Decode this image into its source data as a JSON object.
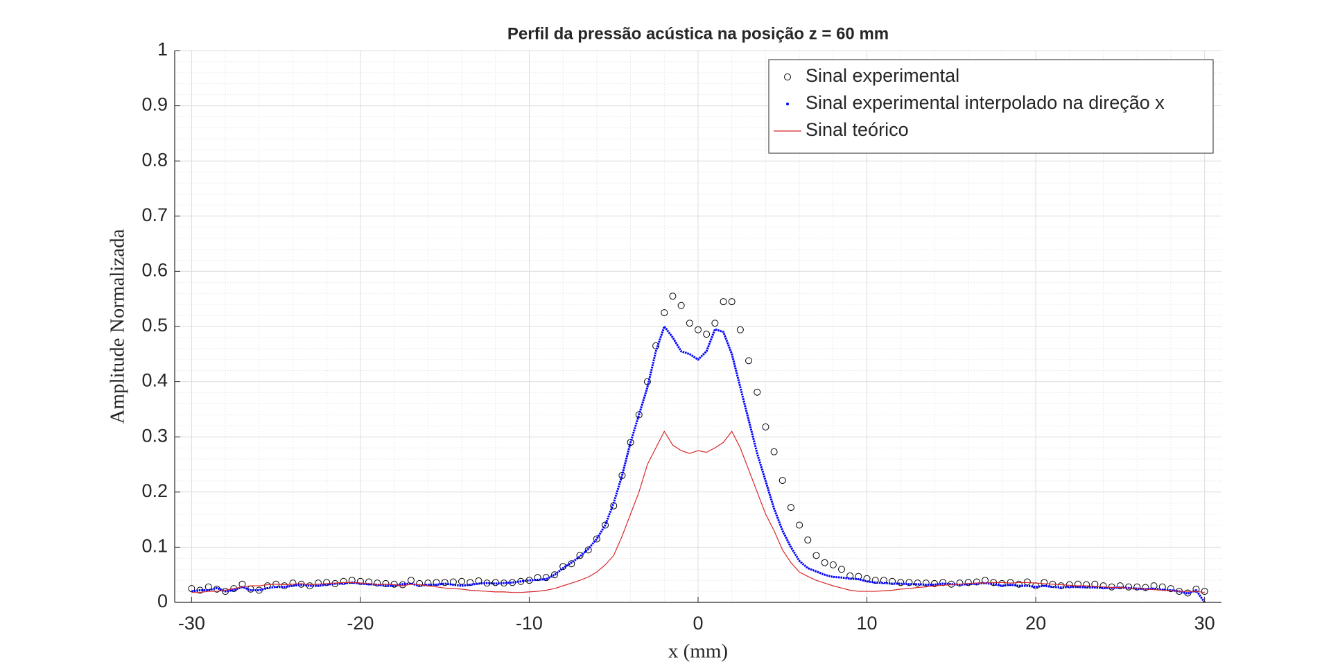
{
  "chart_data": {
    "type": "line",
    "title": "Perfil da pressão acústica na posição z = 60 mm",
    "x_label": "x (mm)",
    "y_label": "Amplitude Normalizada",
    "x": [
      -30,
      -29.5,
      -29,
      -28.5,
      -28,
      -27.5,
      -27,
      -26.5,
      -26,
      -25.5,
      -25,
      -24.5,
      -24,
      -23.5,
      -23,
      -22.5,
      -22,
      -21.5,
      -21,
      -20.5,
      -20,
      -19.5,
      -19,
      -18.5,
      -18,
      -17.5,
      -17,
      -16.5,
      -16,
      -15.5,
      -15,
      -14.5,
      -14,
      -13.5,
      -13,
      -12.5,
      -12,
      -11.5,
      -11,
      -10.5,
      -10,
      -9.5,
      -9,
      -8.5,
      -8,
      -7.5,
      -7,
      -6.5,
      -6,
      -5.5,
      -5,
      -4.5,
      -4,
      -3.5,
      -3,
      -2.5,
      -2,
      -1.5,
      -1,
      -0.5,
      0,
      0.5,
      1,
      1.5,
      2,
      2.5,
      3,
      3.5,
      4,
      4.5,
      5,
      5.5,
      6,
      6.5,
      7,
      7.5,
      8,
      8.5,
      9,
      9.5,
      10,
      10.5,
      11,
      11.5,
      12,
      12.5,
      13,
      13.5,
      14,
      14.5,
      15,
      15.5,
      16,
      16.5,
      17,
      17.5,
      18,
      18.5,
      19,
      19.5,
      20,
      20.5,
      21,
      21.5,
      22,
      22.5,
      23,
      23.5,
      24,
      24.5,
      25,
      25.5,
      26,
      26.5,
      27,
      27.5,
      28,
      28.5,
      29,
      29.5,
      30
    ],
    "series": [
      {
        "name": "Sinal experimental",
        "color": "#000000",
        "marker": "circle",
        "values": [
          0.025,
          0.022,
          0.028,
          0.024,
          0.02,
          0.025,
          0.033,
          0.024,
          0.022,
          0.03,
          0.033,
          0.03,
          0.035,
          0.033,
          0.03,
          0.035,
          0.036,
          0.034,
          0.038,
          0.04,
          0.038,
          0.037,
          0.035,
          0.034,
          0.033,
          0.032,
          0.04,
          0.034,
          0.035,
          0.036,
          0.036,
          0.037,
          0.038,
          0.036,
          0.039,
          0.035,
          0.036,
          0.035,
          0.036,
          0.038,
          0.04,
          0.045,
          0.045,
          0.05,
          0.065,
          0.07,
          0.085,
          0.095,
          0.115,
          0.14,
          0.175,
          0.23,
          0.29,
          0.34,
          0.4,
          0.465,
          0.525,
          0.555,
          0.538,
          0.506,
          0.494,
          0.486,
          0.506,
          0.545,
          0.545,
          0.494,
          0.438,
          0.381,
          0.318,
          0.273,
          0.221,
          0.172,
          0.14,
          0.113,
          0.085,
          0.072,
          0.068,
          0.06,
          0.048,
          0.047,
          0.043,
          0.04,
          0.04,
          0.038,
          0.036,
          0.036,
          0.035,
          0.035,
          0.034,
          0.036,
          0.033,
          0.035,
          0.036,
          0.037,
          0.04,
          0.036,
          0.034,
          0.036,
          0.033,
          0.037,
          0.03,
          0.036,
          0.033,
          0.03,
          0.032,
          0.033,
          0.032,
          0.033,
          0.03,
          0.028,
          0.03,
          0.028,
          0.028,
          0.027,
          0.03,
          0.028,
          0.025,
          0.02,
          0.017,
          0.024,
          0.02
        ]
      },
      {
        "name": "Sinal experimental interpolado na direção x",
        "color": "#0000ff",
        "marker": "dot",
        "values": [
          0.02,
          0.022,
          0.022,
          0.026,
          0.02,
          0.022,
          0.028,
          0.022,
          0.022,
          0.026,
          0.028,
          0.028,
          0.03,
          0.032,
          0.03,
          0.03,
          0.032,
          0.034,
          0.034,
          0.036,
          0.034,
          0.033,
          0.032,
          0.03,
          0.03,
          0.033,
          0.034,
          0.03,
          0.032,
          0.032,
          0.034,
          0.032,
          0.03,
          0.032,
          0.034,
          0.035,
          0.034,
          0.035,
          0.036,
          0.038,
          0.04,
          0.041,
          0.042,
          0.05,
          0.062,
          0.072,
          0.083,
          0.097,
          0.115,
          0.14,
          0.18,
          0.23,
          0.29,
          0.34,
          0.39,
          0.455,
          0.5,
          0.48,
          0.455,
          0.45,
          0.44,
          0.455,
          0.495,
          0.49,
          0.45,
          0.39,
          0.33,
          0.27,
          0.22,
          0.17,
          0.13,
          0.1,
          0.075,
          0.062,
          0.056,
          0.05,
          0.046,
          0.045,
          0.043,
          0.042,
          0.038,
          0.036,
          0.035,
          0.034,
          0.034,
          0.033,
          0.033,
          0.032,
          0.032,
          0.034,
          0.033,
          0.032,
          0.033,
          0.034,
          0.035,
          0.033,
          0.03,
          0.032,
          0.03,
          0.03,
          0.028,
          0.03,
          0.028,
          0.027,
          0.028,
          0.028,
          0.027,
          0.027,
          0.026,
          0.026,
          0.027,
          0.026,
          0.025,
          0.024,
          0.025,
          0.023,
          0.022,
          0.02,
          0.016,
          0.022,
          0.0
        ]
      },
      {
        "name": "Sinal teórico",
        "color": "#d62728",
        "marker": "line",
        "values": [
          0.018,
          0.018,
          0.02,
          0.02,
          0.022,
          0.025,
          0.028,
          0.03,
          0.03,
          0.032,
          0.033,
          0.032,
          0.033,
          0.034,
          0.032,
          0.033,
          0.034,
          0.035,
          0.036,
          0.036,
          0.035,
          0.034,
          0.032,
          0.033,
          0.032,
          0.03,
          0.033,
          0.032,
          0.03,
          0.028,
          0.026,
          0.025,
          0.024,
          0.022,
          0.021,
          0.02,
          0.019,
          0.019,
          0.018,
          0.018,
          0.019,
          0.02,
          0.022,
          0.025,
          0.03,
          0.035,
          0.04,
          0.046,
          0.055,
          0.068,
          0.085,
          0.12,
          0.16,
          0.2,
          0.25,
          0.28,
          0.31,
          0.285,
          0.275,
          0.27,
          0.275,
          0.272,
          0.28,
          0.29,
          0.31,
          0.28,
          0.24,
          0.2,
          0.16,
          0.13,
          0.095,
          0.072,
          0.055,
          0.047,
          0.04,
          0.035,
          0.03,
          0.026,
          0.022,
          0.02,
          0.02,
          0.02,
          0.021,
          0.022,
          0.024,
          0.025,
          0.027,
          0.028,
          0.03,
          0.031,
          0.032,
          0.033,
          0.034,
          0.035,
          0.035,
          0.036,
          0.036,
          0.035,
          0.036,
          0.036,
          0.035,
          0.034,
          0.033,
          0.032,
          0.031,
          0.03,
          0.03,
          0.029,
          0.028,
          0.027,
          0.027,
          0.026,
          0.025,
          0.024,
          0.023,
          0.022,
          0.021,
          0.02,
          0.02,
          0.02,
          0.018
        ]
      }
    ],
    "xlim": [
      -31,
      31
    ],
    "ylim": [
      0,
      1
    ],
    "xticks": [
      -30,
      -20,
      -10,
      0,
      10,
      20,
      30
    ],
    "yticks": [
      0,
      0.1,
      0.2,
      0.3,
      0.4,
      0.5,
      0.6,
      0.7,
      0.8,
      0.9,
      1
    ],
    "grid": true,
    "minor_grid": true,
    "legend": "upper right"
  }
}
